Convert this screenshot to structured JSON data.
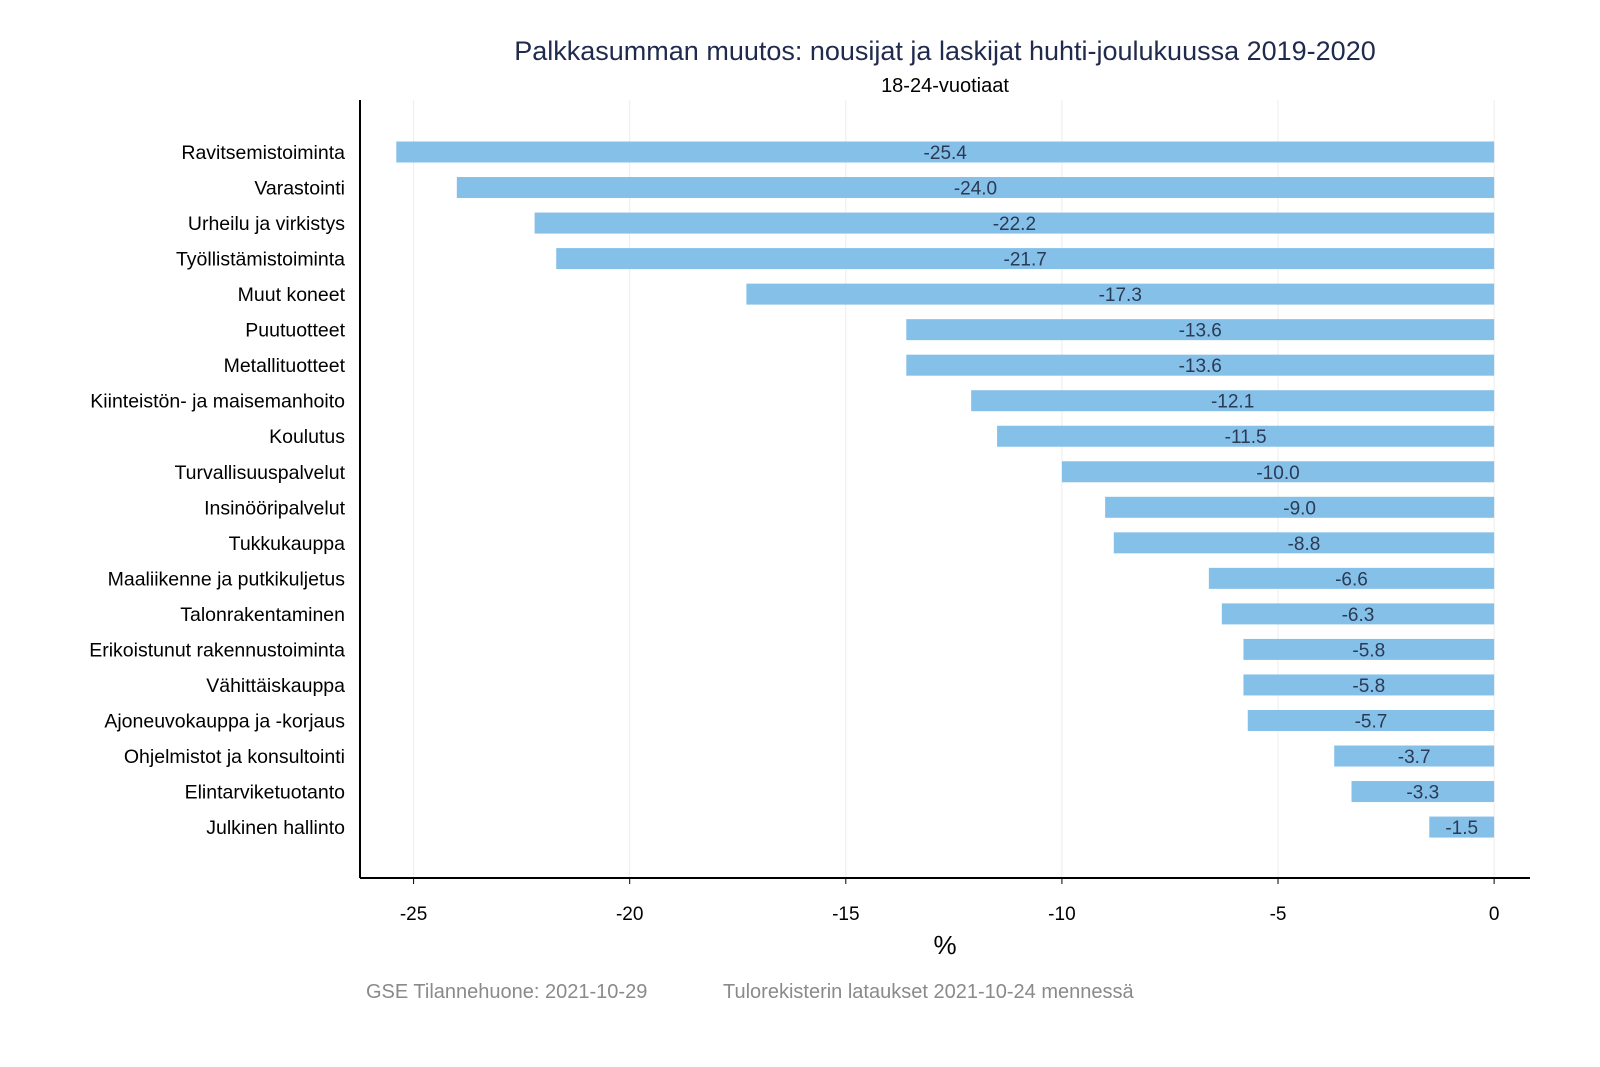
{
  "chart_data": {
    "type": "bar",
    "orientation": "horizontal",
    "title": "Palkkasumman muutos: nousijat ja laskijat huhti-joulukuussa 2019-2020",
    "subtitle": "18-24-vuotiaat",
    "xlabel": "%",
    "ylabel": "",
    "xlim": [
      -26.24,
      0.83
    ],
    "xticks": [
      -25,
      -20,
      -15,
      -10,
      -5,
      0
    ],
    "xtick_labels": [
      "-25",
      "-20",
      "-15",
      "-10",
      "-5",
      "0"
    ],
    "grid": "vertical",
    "bar_color": "#85c0e9",
    "categories": [
      "Ravitsemistoiminta",
      "Varastointi",
      "Urheilu ja virkistys",
      "Työllistämistoiminta",
      "Muut koneet",
      "Puutuotteet",
      "Metallituotteet",
      "Kiinteistön- ja maisemanhoito",
      "Koulutus",
      "Turvallisuuspalvelut",
      "Insinööripalvelut",
      "Tukkukauppa",
      "Maaliikenne ja putkikuljetus",
      "Talonrakentaminen",
      "Erikoistunut rakennustoiminta",
      "Vähittäiskauppa",
      "Ajoneuvokauppa ja -korjaus",
      "Ohjelmistot ja konsultointi",
      "Elintarviketuotanto",
      "Julkinen hallinto"
    ],
    "values": [
      -25.4,
      -24.0,
      -22.2,
      -21.7,
      -17.3,
      -13.6,
      -13.6,
      -12.1,
      -11.5,
      -10.0,
      -9.0,
      -8.8,
      -6.6,
      -6.3,
      -5.8,
      -5.8,
      -5.7,
      -3.7,
      -3.3,
      -1.5
    ],
    "value_labels": [
      "-25.4",
      "-24.0",
      "-22.2",
      "-21.7",
      "-17.3",
      "-13.6",
      "-13.6",
      "-12.1",
      "-11.5",
      "-10.0",
      "-9.0",
      "-8.8",
      "-6.6",
      "-6.3",
      "-5.8",
      "-5.8",
      "-5.7",
      "-3.7",
      "-3.3",
      "-1.5"
    ]
  },
  "footer": {
    "source": "GSE Tilannehuone: 2021-10-29",
    "note": "Tulorekisterin lataukset 2021-10-24 mennessä"
  }
}
